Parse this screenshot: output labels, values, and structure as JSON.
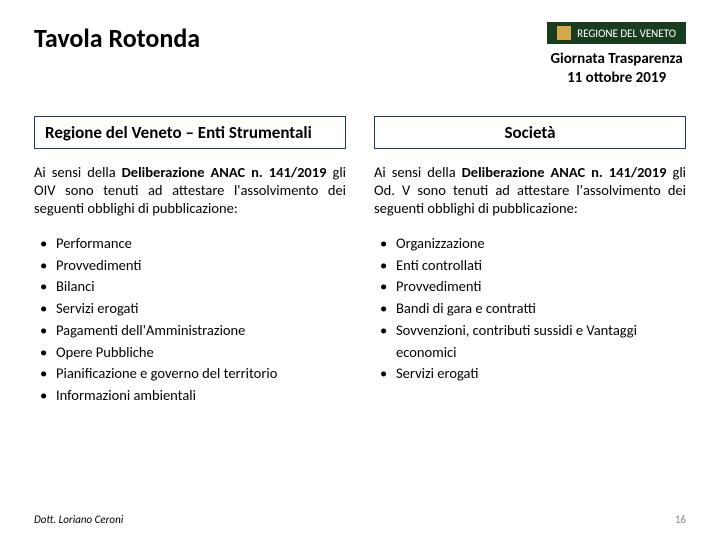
{
  "title": "Tavola Rotonda",
  "logo_text": "REGIONE DEL VENETO",
  "event": {
    "line1": "Giornata Trasparenza",
    "line2": "11 ottobre 2019"
  },
  "left": {
    "header": "Regione del Veneto – Enti Strumentali",
    "para_parts": {
      "p1": "Ai sensi della ",
      "b1": "Deliberazione ANAC n. 141/2019",
      "p2": " gli OIV sono tenuti ad attestare l'assolvimento dei seguenti obblighi di pubblicazione:"
    },
    "items": [
      "Performance",
      "Provvedimenti",
      "Bilanci",
      "Servizi erogati",
      "Pagamenti dell'Amministrazione",
      "Opere Pubbliche",
      "Pianificazione e governo del territorio",
      "Informazioni ambientali"
    ]
  },
  "right": {
    "header": "Società",
    "para_parts": {
      "p1": "Ai sensi della ",
      "b1": "Deliberazione ANAC n. 141/2019",
      "p2": " gli Od. V sono tenuti ad attestare l'assolvimento dei seguenti obblighi di pubblicazione:"
    },
    "items": [
      "Organizzazione",
      "Enti controllati",
      "Provvedimenti",
      "Bandi di gara e contratti",
      "Sovvenzioni, contributi sussidi e Vantaggi economici",
      "Servizi erogati"
    ]
  },
  "footer": {
    "author": "Dott. Loriano Ceroni",
    "page": "16"
  },
  "colors": {
    "header_border": "#203864",
    "logo_bg": "#173d1e",
    "logo_accent": "#d4a94a"
  }
}
